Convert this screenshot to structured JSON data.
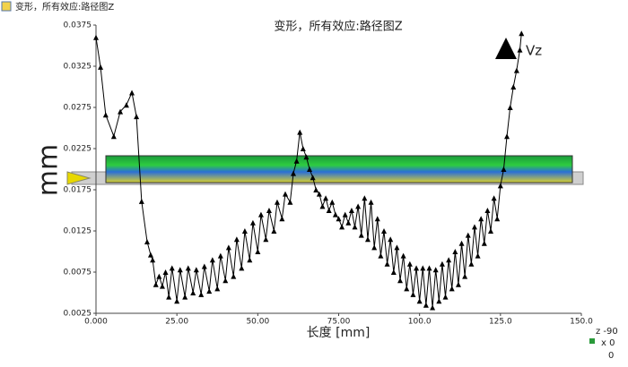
{
  "chart_data": {
    "type": "line",
    "window_title": "变形，所有效应:路径图Z",
    "title": "变形，所有效应:路径图Z",
    "ylabel": "mm",
    "xlabel": "长度 [mm]",
    "triad_labels": [
      "z -90",
      "x 0",
      "0"
    ],
    "xlim": [
      0,
      150
    ],
    "xticks": [
      {
        "value": 0,
        "label": "0.000"
      },
      {
        "value": 25,
        "label": "25.00"
      },
      {
        "value": 50,
        "label": "50.00"
      },
      {
        "value": 75,
        "label": "75.00"
      },
      {
        "value": 100,
        "label": "100.0"
      },
      {
        "value": 125,
        "label": "125.0"
      },
      {
        "value": 150,
        "label": "150.0"
      }
    ],
    "ylim": [
      0.0025,
      0.0375
    ],
    "yticks": [
      0.0025,
      0.0075,
      0.0125,
      0.0175,
      0.0225,
      0.0275,
      0.0325,
      0.0375
    ],
    "legend": "upper right",
    "x": [
      0,
      1.4,
      3,
      5.5,
      7.5,
      9.4,
      11.1,
      12.5,
      14.1,
      15.8,
      16.9,
      17.5,
      18.5,
      19.5,
      20.5,
      21.5,
      22.5,
      23.5,
      25,
      26,
      27.5,
      28.5,
      30,
      31,
      32.5,
      33.5,
      35,
      36,
      37.5,
      38.5,
      40,
      41,
      42.5,
      43.5,
      45,
      46,
      47.5,
      48.5,
      50,
      51,
      52.5,
      53.5,
      55,
      56,
      57.5,
      58.5,
      60,
      61,
      62,
      63,
      64,
      65,
      66,
      67,
      68,
      69,
      70,
      71,
      72,
      73,
      74,
      75,
      76,
      77,
      78,
      79,
      80,
      81,
      82,
      83,
      84,
      85,
      86,
      87,
      88,
      89,
      90,
      91,
      92,
      93,
      94,
      95,
      96,
      97,
      98,
      99,
      100,
      101,
      102,
      103,
      104,
      105,
      106,
      107,
      108,
      109,
      110,
      111,
      112,
      113,
      114,
      115,
      116,
      117,
      118,
      119,
      120,
      121,
      122,
      123,
      124,
      125,
      126,
      127,
      128,
      129,
      130,
      131,
      131.5
    ],
    "series": [
      {
        "name": "Vz",
        "color": "#000000",
        "values": [
          0.036,
          0.0324,
          0.0266,
          0.024,
          0.027,
          0.0278,
          0.0293,
          0.0264,
          0.0161,
          0.0112,
          0.0096,
          0.009,
          0.006,
          0.007,
          0.0058,
          0.0075,
          0.0045,
          0.008,
          0.004,
          0.0078,
          0.0045,
          0.008,
          0.005,
          0.0078,
          0.0048,
          0.0082,
          0.0052,
          0.009,
          0.0055,
          0.0095,
          0.0065,
          0.0105,
          0.007,
          0.0115,
          0.008,
          0.0125,
          0.009,
          0.0135,
          0.01,
          0.0145,
          0.0115,
          0.015,
          0.0125,
          0.016,
          0.014,
          0.017,
          0.016,
          0.0195,
          0.021,
          0.0245,
          0.0225,
          0.0215,
          0.02,
          0.019,
          0.0175,
          0.017,
          0.0155,
          0.0165,
          0.015,
          0.016,
          0.0145,
          0.014,
          0.013,
          0.0145,
          0.0135,
          0.015,
          0.013,
          0.0155,
          0.012,
          0.0165,
          0.0115,
          0.016,
          0.0105,
          0.014,
          0.0095,
          0.0125,
          0.0085,
          0.0115,
          0.0075,
          0.0105,
          0.0065,
          0.0095,
          0.0055,
          0.0085,
          0.0048,
          0.008,
          0.004,
          0.008,
          0.0035,
          0.008,
          0.0032,
          0.0078,
          0.004,
          0.0085,
          0.0045,
          0.009,
          0.0055,
          0.01,
          0.006,
          0.011,
          0.007,
          0.012,
          0.0085,
          0.013,
          0.0095,
          0.014,
          0.011,
          0.015,
          0.0125,
          0.0165,
          0.014,
          0.018,
          0.02,
          0.024,
          0.0275,
          0.03,
          0.032,
          0.0345,
          0.0365
        ]
      }
    ]
  }
}
